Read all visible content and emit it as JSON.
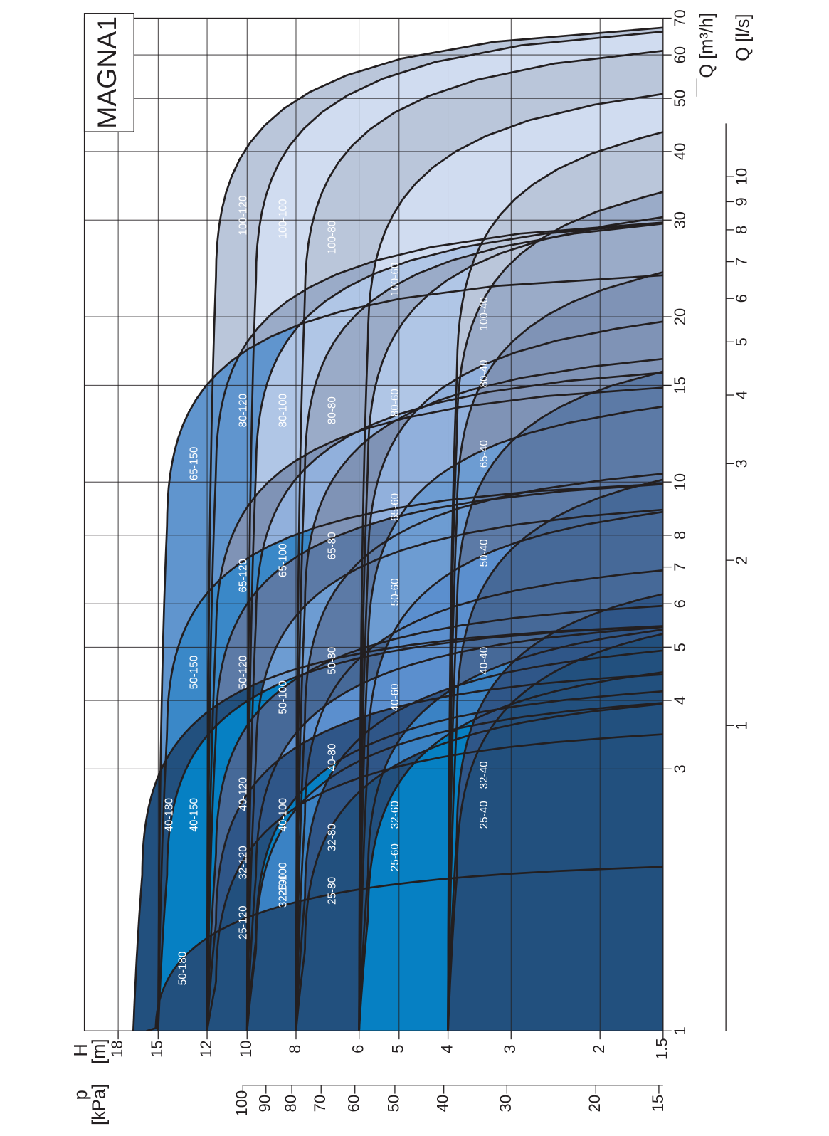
{
  "chart_data": {
    "type": "area",
    "title": "MAGNA1",
    "x_label_q_m3h": "Q [m³/h]",
    "x_label_q_ls": "Q [l/s]",
    "y_label_h": "H",
    "y_unit_h": "[m]",
    "y_label_p": "p",
    "y_unit_p": "[kPa]",
    "x_scale": "log",
    "y_scale": "log",
    "xlim_m3h": [
      1,
      70
    ],
    "ylim_m": [
      1.5,
      19.2
    ],
    "grid": true,
    "x_ticks_m3h": [
      "1",
      "3",
      "4",
      "5",
      "6",
      "7",
      "8",
      "10",
      "15",
      "20",
      "30",
      "40",
      "50",
      "60",
      "70"
    ],
    "x_ticks_ls": [
      "1",
      "2",
      "3",
      "4",
      "5",
      "6",
      "7",
      "8",
      "9",
      "10"
    ],
    "y_ticks_m": [
      "18",
      "15",
      "12",
      "10",
      "8",
      "6",
      "5",
      "4",
      "3",
      "2",
      "1.5"
    ],
    "y_ticks_kpa": [
      "100",
      "90",
      "80",
      "70",
      "60",
      "50",
      "40",
      "30",
      "20",
      "15"
    ],
    "series": [
      {
        "name": "100-120",
        "max_head_m": 12.0,
        "max_flow_m3h": 68,
        "color": "#bac6da"
      },
      {
        "name": "100-100",
        "max_head_m": 10.0,
        "max_flow_m3h": 67,
        "color": "#d0dcf0"
      },
      {
        "name": "100-80",
        "max_head_m": 8.0,
        "max_flow_m3h": 62,
        "color": "#bac6da"
      },
      {
        "name": "100-60",
        "max_head_m": 6.0,
        "max_flow_m3h": 52,
        "color": "#d0dcf0"
      },
      {
        "name": "100-40",
        "max_head_m": 4.0,
        "max_flow_m3h": 45,
        "color": "#bac6da"
      },
      {
        "name": "80-120",
        "max_head_m": 12.0,
        "max_flow_m3h": 30,
        "color": "#9aabc8"
      },
      {
        "name": "80-100",
        "max_head_m": 10.0,
        "max_flow_m3h": 30,
        "color": "#b0c6e6"
      },
      {
        "name": "80-80",
        "max_head_m": 8.0,
        "max_flow_m3h": 30,
        "color": "#9aabc8"
      },
      {
        "name": "80-60",
        "max_head_m": 6.0,
        "max_flow_m3h": 31,
        "color": "#b0c6e6"
      },
      {
        "name": "80-40",
        "max_head_m": 4.0,
        "max_flow_m3h": 35,
        "color": "#9aabc8"
      },
      {
        "name": "65-150",
        "max_head_m": 15.0,
        "max_flow_m3h": 24,
        "color": "#6095ce"
      },
      {
        "name": "65-120",
        "max_head_m": 12.0,
        "max_flow_m3h": 15,
        "color": "#7f93b6"
      },
      {
        "name": "65-100",
        "max_head_m": 10.0,
        "max_flow_m3h": 16,
        "color": "#91b0dc"
      },
      {
        "name": "65-80",
        "max_head_m": 8.0,
        "max_flow_m3h": 17,
        "color": "#7f93b6"
      },
      {
        "name": "65-60",
        "max_head_m": 6.0,
        "max_flow_m3h": 20,
        "color": "#91b0dc"
      },
      {
        "name": "65-40",
        "max_head_m": 4.0,
        "max_flow_m3h": 25,
        "color": "#7f93b6"
      },
      {
        "name": "50-180",
        "max_head_m": 15.8,
        "max_flow_m3h": 2.0,
        "color": "#22507e"
      },
      {
        "name": "50-150",
        "max_head_m": 15.0,
        "max_flow_m3h": 10,
        "color": "#3a88c8"
      },
      {
        "name": "50-120",
        "max_head_m": 12.0,
        "max_flow_m3h": 10,
        "color": "#5c7aa6"
      },
      {
        "name": "50-100",
        "max_head_m": 10.0,
        "max_flow_m3h": 9,
        "color": "#6d9cd2"
      },
      {
        "name": "50-80",
        "max_head_m": 8.0,
        "max_flow_m3h": 10.5,
        "color": "#5c7aa6"
      },
      {
        "name": "50-60",
        "max_head_m": 6.0,
        "max_flow_m3h": 14,
        "color": "#6d9cd2"
      },
      {
        "name": "50-40",
        "max_head_m": 4.0,
        "max_flow_m3h": 16.5,
        "color": "#5c7aa6"
      },
      {
        "name": "40-180",
        "max_head_m": 16.8,
        "max_flow_m3h": 5.5,
        "color": "#22507e"
      },
      {
        "name": "40-150",
        "max_head_m": 15.0,
        "max_flow_m3h": 5.5,
        "color": "#0680c3"
      },
      {
        "name": "40-120",
        "max_head_m": 12.0,
        "max_flow_m3h": 6,
        "color": "#466998"
      },
      {
        "name": "40-100",
        "max_head_m": 10.0,
        "max_flow_m3h": 5.5,
        "color": "#5b8fce"
      },
      {
        "name": "40-80",
        "max_head_m": 8.0,
        "max_flow_m3h": 7,
        "color": "#466998"
      },
      {
        "name": "40-60",
        "max_head_m": 6.0,
        "max_flow_m3h": 9,
        "color": "#5b8fce"
      },
      {
        "name": "40-40",
        "max_head_m": 4.0,
        "max_flow_m3h": 10.5,
        "color": "#466998"
      },
      {
        "name": "32-120",
        "max_head_m": 12.0,
        "max_flow_m3h": 4.5,
        "color": "#2f5688"
      },
      {
        "name": "32-100",
        "max_head_m": 10.0,
        "max_flow_m3h": 4.0,
        "color": "#3a82c4"
      },
      {
        "name": "32-80",
        "max_head_m": 8.0,
        "max_flow_m3h": 5.0,
        "color": "#2f5688"
      },
      {
        "name": "32-60",
        "max_head_m": 6.0,
        "max_flow_m3h": 5.5,
        "color": "#3a82c4"
      },
      {
        "name": "32-40",
        "max_head_m": 4.0,
        "max_flow_m3h": 6.5,
        "color": "#2f5688"
      },
      {
        "name": "25-120",
        "max_head_m": 12.0,
        "max_flow_m3h": 3.5,
        "color": "#22507e"
      },
      {
        "name": "25-100",
        "max_head_m": 10.0,
        "max_flow_m3h": 4.2,
        "color": "#0680c3"
      },
      {
        "name": "25-80",
        "max_head_m": 8.0,
        "max_flow_m3h": 4.0,
        "color": "#22507e"
      },
      {
        "name": "25-60",
        "max_head_m": 6.0,
        "max_flow_m3h": 4.6,
        "color": "#0680c3"
      },
      {
        "name": "25-40",
        "max_head_m": 4.0,
        "max_flow_m3h": 5.5,
        "color": "#22507e"
      }
    ]
  }
}
